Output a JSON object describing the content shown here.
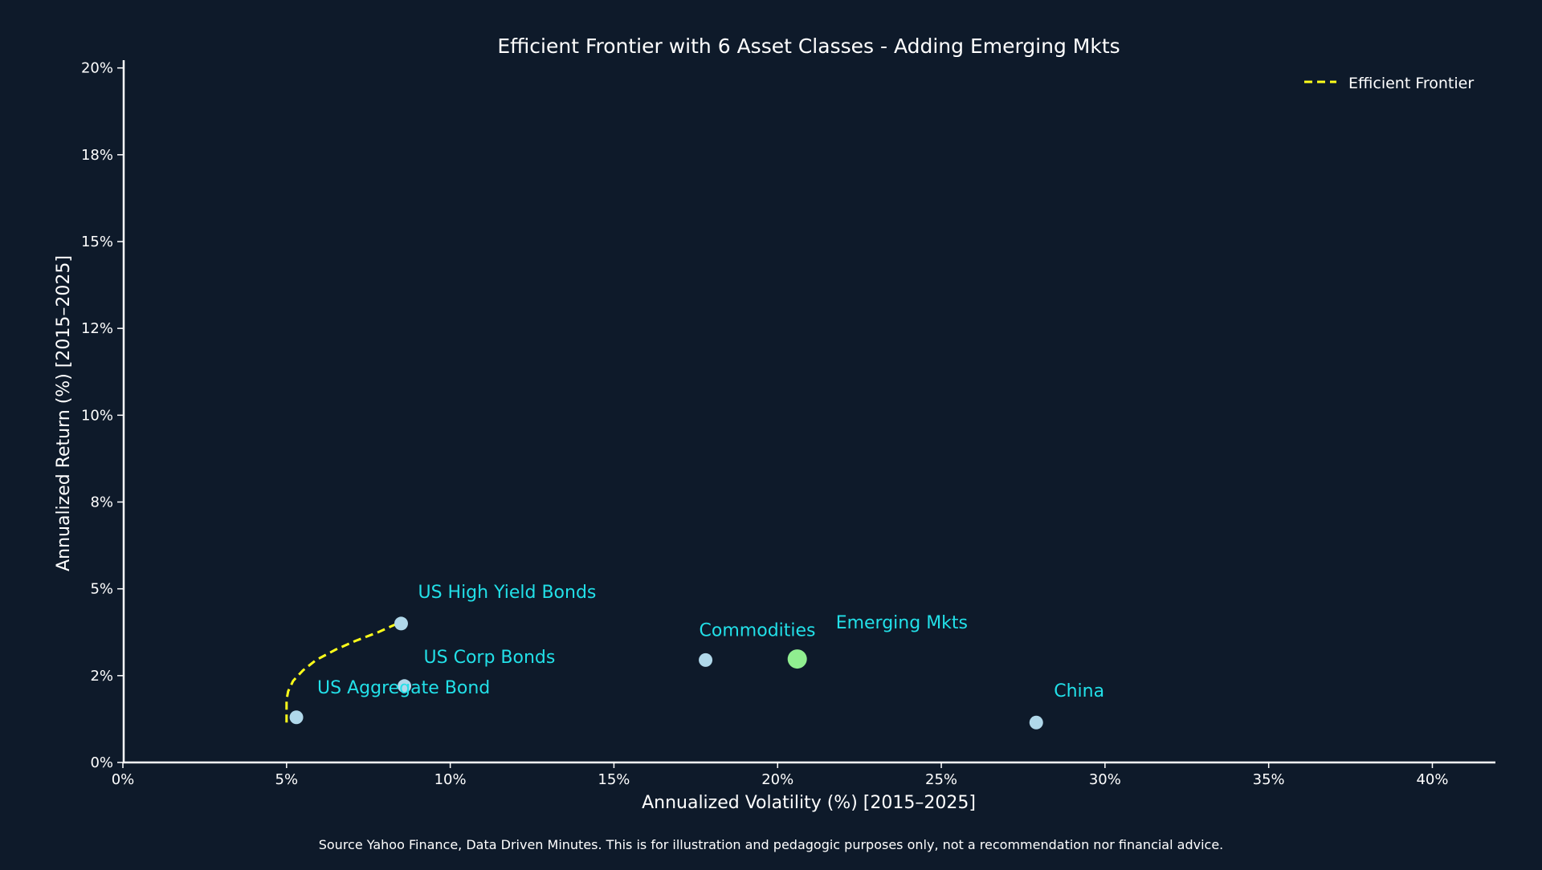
{
  "chart_data": {
    "type": "scatter",
    "title": "Efficient Frontier with 6 Asset Classes - Adding Emerging Mkts",
    "xlabel": "Annualized Volatility (%) [2015–2025]",
    "ylabel": "Annualized Return (%) [2015–2025]",
    "xlim": [
      0,
      42
    ],
    "ylim": [
      0,
      20.2
    ],
    "x_ticks": [
      {
        "value": 0,
        "label": "0%"
      },
      {
        "value": 5,
        "label": "5%"
      },
      {
        "value": 10,
        "label": "10%"
      },
      {
        "value": 15,
        "label": "15%"
      },
      {
        "value": 20,
        "label": "20%"
      },
      {
        "value": 25,
        "label": "25%"
      },
      {
        "value": 30,
        "label": "30%"
      },
      {
        "value": 35,
        "label": "35%"
      },
      {
        "value": 40,
        "label": "40%"
      }
    ],
    "y_ticks": [
      {
        "value": 0,
        "label": "0%"
      },
      {
        "value": 2.5,
        "label": "2%"
      },
      {
        "value": 5,
        "label": "5%"
      },
      {
        "value": 7.5,
        "label": "8%"
      },
      {
        "value": 10,
        "label": "10%"
      },
      {
        "value": 12.5,
        "label": "12%"
      },
      {
        "value": 15,
        "label": "15%"
      },
      {
        "value": 17.5,
        "label": "18%"
      },
      {
        "value": 20,
        "label": "20%"
      }
    ],
    "grid": false,
    "legend": {
      "position": "top-right",
      "entries": [
        {
          "label": "Efficient Frontier",
          "style": "dashed",
          "color": "#ffff1a"
        }
      ]
    },
    "assets": [
      {
        "name": "US Aggregate Bond",
        "x": 5.3,
        "y": 1.3,
        "color": "#b0d8ea",
        "highlight": false
      },
      {
        "name": "US Corp Bonds",
        "x": 8.6,
        "y": 2.2,
        "color": "#b0d8ea",
        "highlight": false
      },
      {
        "name": "US High Yield Bonds",
        "x": 8.5,
        "y": 4.0,
        "color": "#b0d8ea",
        "highlight": false
      },
      {
        "name": "Commodities",
        "x": 17.8,
        "y": 2.95,
        "color": "#b0d8ea",
        "highlight": false
      },
      {
        "name": "Emerging Mkts",
        "x": 20.6,
        "y": 2.98,
        "color": "#90ee90",
        "highlight": true
      },
      {
        "name": "China",
        "x": 27.9,
        "y": 1.15,
        "color": "#b0d8ea",
        "highlight": false
      }
    ],
    "frontier": {
      "name": "Efficient Frontier",
      "color": "#ffff1a",
      "x": [
        5.0,
        5.0,
        5.0,
        5.05,
        5.2,
        5.5,
        5.9,
        6.5,
        7.1,
        7.8,
        8.5
      ],
      "y": [
        1.15,
        1.45,
        1.8,
        2.05,
        2.35,
        2.65,
        2.95,
        3.25,
        3.5,
        3.75,
        4.05
      ]
    },
    "label_color": "#22e0e8",
    "footnote": "Source Yahoo Finance, Data Driven Minutes. This is for illustration and pedagogic purposes only, not a recommendation nor financial advice."
  }
}
